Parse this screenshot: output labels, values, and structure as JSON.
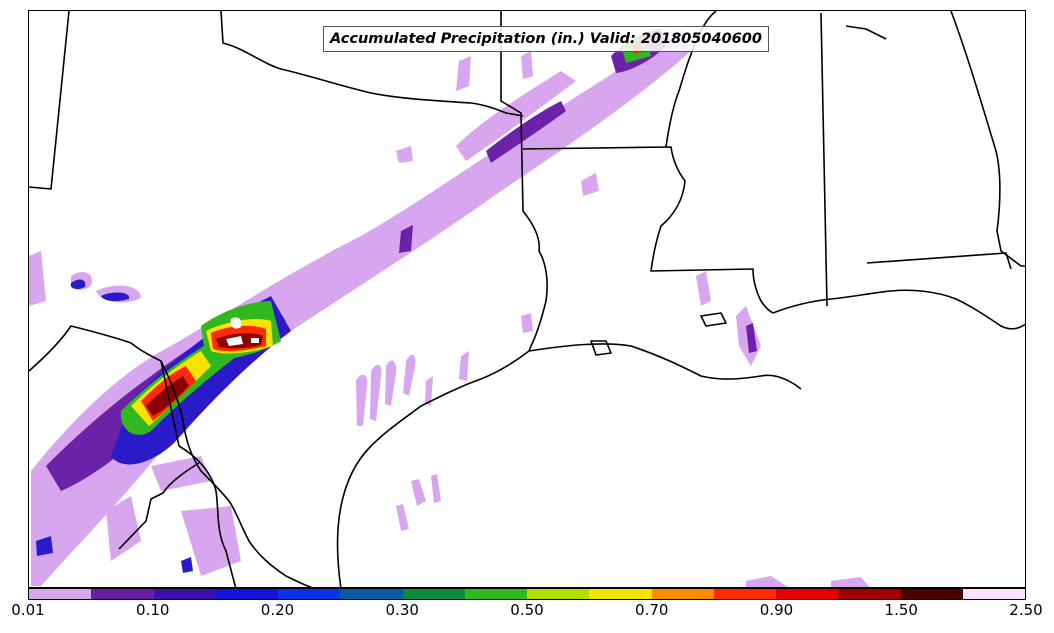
{
  "title": "Accumulated Precipitation (in.) Valid: 201805040600",
  "colorbar": {
    "colors": [
      "#d7a6ef",
      "#6a1fa2",
      "#3b0fb0",
      "#1414d8",
      "#0a32e6",
      "#0b5aa8",
      "#0c8a3c",
      "#30b81e",
      "#b0e000",
      "#f7e300",
      "#ff8a00",
      "#ff2a00",
      "#e60000",
      "#a00000",
      "#4a0000",
      "#fde0fb"
    ],
    "tick_labels": [
      "0.01",
      "0.10",
      "0.20",
      "0.30",
      "0.50",
      "0.70",
      "0.90",
      "1.50",
      "2.50"
    ]
  },
  "colors": {
    "boundary": "#000000",
    "light_precip": "#d8a6ee",
    "mid_precip": "#6b22a8",
    "heavy_precip": "#8b0000"
  }
}
